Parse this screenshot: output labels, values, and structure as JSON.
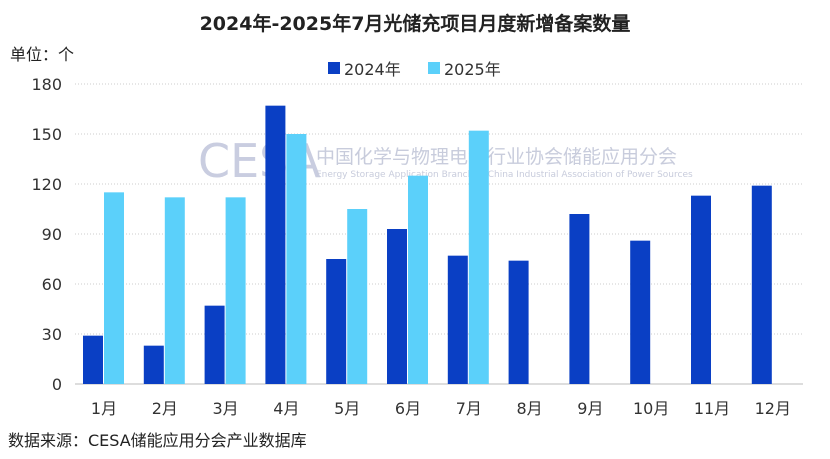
{
  "chart_data": {
    "type": "bar",
    "title": "2024年-2025年7月光储充项目月度新增备案数量",
    "ylabel": "单位：个",
    "categories": [
      "1月",
      "2月",
      "3月",
      "4月",
      "5月",
      "6月",
      "7月",
      "8月",
      "9月",
      "10月",
      "11月",
      "12月"
    ],
    "series": [
      {
        "name": "2024年",
        "color": "#0a3fc4",
        "values": [
          29,
          23,
          47,
          167,
          75,
          93,
          77,
          74,
          102,
          86,
          113,
          119
        ]
      },
      {
        "name": "2025年",
        "color": "#5bd0fa",
        "values": [
          115,
          112,
          112,
          150,
          105,
          125,
          152,
          null,
          null,
          null,
          null,
          null
        ]
      }
    ],
    "ylim": [
      0,
      180
    ],
    "yticks": [
      0,
      30,
      60,
      90,
      120,
      150,
      180
    ],
    "grid": true,
    "legend": "top-center"
  },
  "watermark": {
    "logo": "CESA",
    "name_cn": "中国化学与物理电源行业协会储能应用分会",
    "name_en": "Energy Storage Application Branch of China Industrial Association of Power Sources"
  },
  "source": "数据来源：CESA储能应用分会产业数据库"
}
